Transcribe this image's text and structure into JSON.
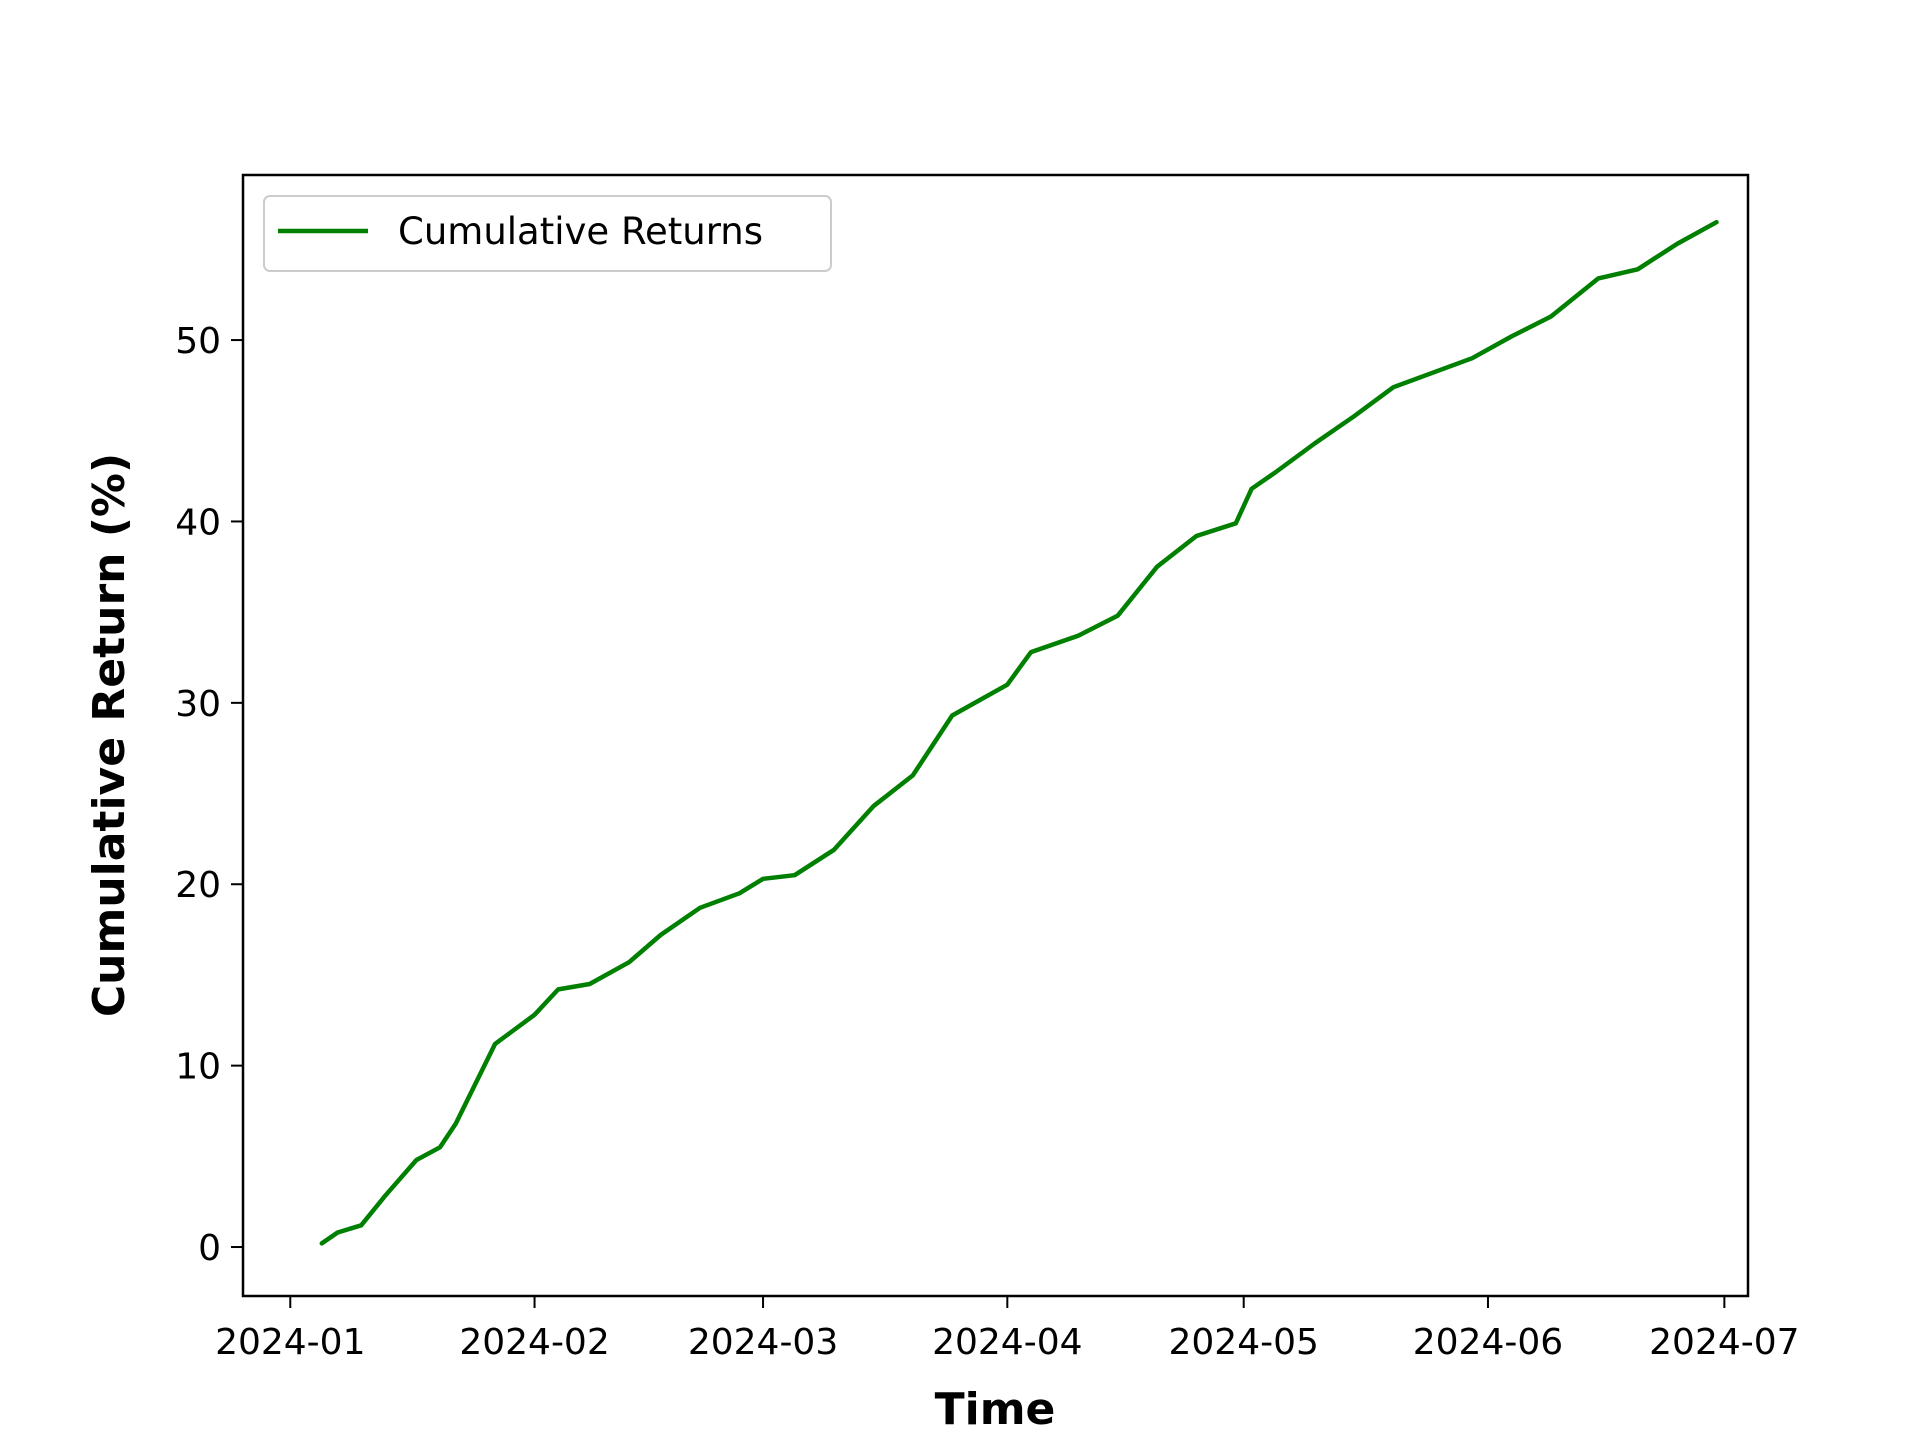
{
  "chart_data": {
    "type": "line",
    "title": "",
    "xlabel": "Time",
    "ylabel": "Cumulative Return (%)",
    "xlim": [
      "2023-12-26",
      "2024-07-04"
    ],
    "ylim": [
      -2.7,
      59.1
    ],
    "x_ticks": [
      "2024-01",
      "2024-02",
      "2024-03",
      "2024-04",
      "2024-05",
      "2024-06",
      "2024-07"
    ],
    "y_ticks": [
      "0",
      "10",
      "20",
      "30",
      "40",
      "50"
    ],
    "grid": false,
    "legend": {
      "position": "upper-left"
    },
    "series": [
      {
        "name": "Cumulative Returns",
        "color": "#008000",
        "x": [
          "2024-01-05",
          "2024-01-07",
          "2024-01-10",
          "2024-01-13",
          "2024-01-17",
          "2024-01-20",
          "2024-01-22",
          "2024-01-27",
          "2024-02-01",
          "2024-02-04",
          "2024-02-08",
          "2024-02-13",
          "2024-02-17",
          "2024-02-22",
          "2024-02-27",
          "2024-03-01",
          "2024-03-05",
          "2024-03-10",
          "2024-03-15",
          "2024-03-20",
          "2024-03-25",
          "2024-04-01",
          "2024-04-04",
          "2024-04-10",
          "2024-04-15",
          "2024-04-20",
          "2024-04-25",
          "2024-04-30",
          "2024-05-02",
          "2024-05-05",
          "2024-05-10",
          "2024-05-15",
          "2024-05-20",
          "2024-05-25",
          "2024-05-30",
          "2024-06-04",
          "2024-06-09",
          "2024-06-15",
          "2024-06-20",
          "2024-06-25",
          "2024-06-30"
        ],
        "y": [
          0.2,
          0.8,
          1.2,
          2.8,
          4.8,
          5.5,
          6.8,
          11.2,
          12.8,
          14.2,
          14.5,
          15.7,
          17.2,
          18.7,
          19.5,
          20.3,
          20.5,
          21.9,
          24.3,
          26.0,
          29.3,
          31.0,
          32.8,
          33.7,
          34.8,
          37.5,
          39.2,
          39.9,
          41.8,
          42.7,
          44.3,
          45.8,
          47.4,
          48.2,
          49.0,
          50.2,
          51.3,
          53.4,
          53.9,
          55.3,
          56.5
        ]
      }
    ]
  }
}
